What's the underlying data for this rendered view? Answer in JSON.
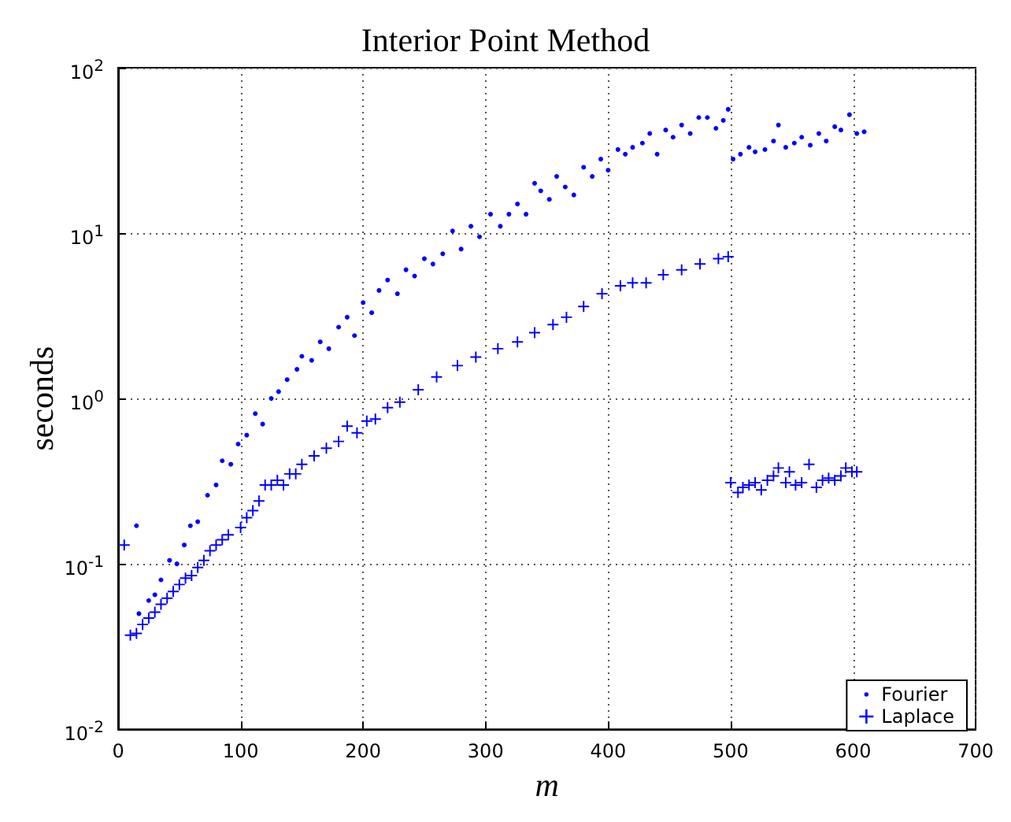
{
  "chart_data": {
    "type": "scatter",
    "title": "Interior Point Method",
    "xlabel": "m",
    "ylabel": "seconds",
    "xlim": [
      0,
      700
    ],
    "xticks": [
      0,
      100,
      200,
      300,
      400,
      500,
      600,
      700
    ],
    "ylim": [
      0.01,
      100
    ],
    "yticks": [
      {
        "value": 0.01,
        "label": "10$^{-2}$"
      },
      {
        "value": 0.1,
        "label": "10$^{-1}$"
      },
      {
        "value": 1,
        "label": "10$^{0}$"
      },
      {
        "value": 10,
        "label": "10$^{1}$"
      },
      {
        "value": 100,
        "label": "10$^{2}$"
      }
    ],
    "log": "y",
    "grid": true,
    "legend": "bottom right",
    "series": [
      {
        "name": "Fourier",
        "color": "#0000ff",
        "marker": "circle",
        "x": [
          15,
          17,
          25,
          30,
          35,
          42,
          48,
          54,
          59,
          65,
          73,
          80,
          85,
          92,
          98,
          105,
          112,
          118,
          125,
          131,
          138,
          146,
          150,
          158,
          165,
          172,
          180,
          187,
          193,
          200,
          207,
          213,
          220,
          228,
          235,
          242,
          250,
          257,
          265,
          273,
          280,
          288,
          295,
          304,
          312,
          319,
          326,
          333,
          340,
          345,
          352,
          358,
          365,
          372,
          380,
          387,
          394,
          400,
          408,
          414,
          420,
          428,
          434,
          440,
          447,
          453,
          460,
          467,
          474,
          481,
          488,
          494,
          498,
          502,
          508,
          515,
          520,
          528,
          535,
          539,
          545,
          552,
          558,
          565,
          572,
          578,
          585,
          590,
          597,
          603,
          609
        ],
        "values": [
          0.17,
          0.05,
          0.06,
          0.065,
          0.08,
          0.105,
          0.1,
          0.13,
          0.17,
          0.18,
          0.26,
          0.3,
          0.42,
          0.4,
          0.53,
          0.6,
          0.81,
          0.7,
          1.0,
          1.1,
          1.3,
          1.5,
          1.8,
          1.7,
          2.2,
          2.0,
          2.7,
          3.1,
          2.4,
          3.8,
          3.3,
          4.5,
          5.2,
          4.3,
          6.0,
          5.5,
          7.0,
          6.5,
          7.5,
          10.3,
          8.0,
          11,
          9.5,
          13,
          11,
          13,
          15,
          13,
          20,
          18,
          16,
          22,
          19,
          17,
          25,
          22,
          28,
          24,
          32,
          30,
          33,
          35,
          40,
          30,
          42,
          38,
          45,
          40,
          50,
          50,
          43,
          48,
          56,
          28,
          30,
          33,
          31,
          32,
          36,
          45,
          33,
          35,
          38,
          34,
          40,
          36,
          44,
          42,
          52,
          40,
          41
        ]
      },
      {
        "name": "Laplace",
        "color": "#0000ff",
        "marker": "cross",
        "x": [
          5,
          10,
          15,
          20,
          25,
          30,
          35,
          40,
          45,
          50,
          55,
          60,
          65,
          70,
          75,
          80,
          85,
          90,
          100,
          105,
          110,
          115,
          120,
          125,
          130,
          135,
          140,
          145,
          150,
          160,
          170,
          180,
          187,
          195,
          203,
          210,
          220,
          230,
          245,
          260,
          277,
          292,
          310,
          326,
          340,
          355,
          366,
          380,
          395,
          410,
          420,
          431,
          445,
          460,
          475,
          490,
          498,
          500,
          506,
          510,
          515,
          520,
          525,
          530,
          535,
          539,
          545,
          548,
          553,
          558,
          564,
          570,
          575,
          580,
          585,
          590,
          594,
          599,
          603
        ],
        "values": [
          0.13,
          0.037,
          0.038,
          0.043,
          0.047,
          0.051,
          0.057,
          0.062,
          0.068,
          0.075,
          0.082,
          0.085,
          0.095,
          0.105,
          0.12,
          0.13,
          0.14,
          0.15,
          0.166,
          0.19,
          0.21,
          0.24,
          0.3,
          0.3,
          0.32,
          0.3,
          0.35,
          0.35,
          0.4,
          0.45,
          0.5,
          0.55,
          0.68,
          0.62,
          0.73,
          0.75,
          0.88,
          0.95,
          1.13,
          1.35,
          1.58,
          1.78,
          2.0,
          2.2,
          2.5,
          2.8,
          3.1,
          3.6,
          4.3,
          4.8,
          5.0,
          5.0,
          5.6,
          6.0,
          6.5,
          7.0,
          7.2,
          0.31,
          0.27,
          0.29,
          0.3,
          0.31,
          0.28,
          0.32,
          0.34,
          0.38,
          0.31,
          0.36,
          0.3,
          0.31,
          0.4,
          0.29,
          0.32,
          0.33,
          0.32,
          0.34,
          0.38,
          0.36,
          0.36
        ]
      }
    ]
  }
}
